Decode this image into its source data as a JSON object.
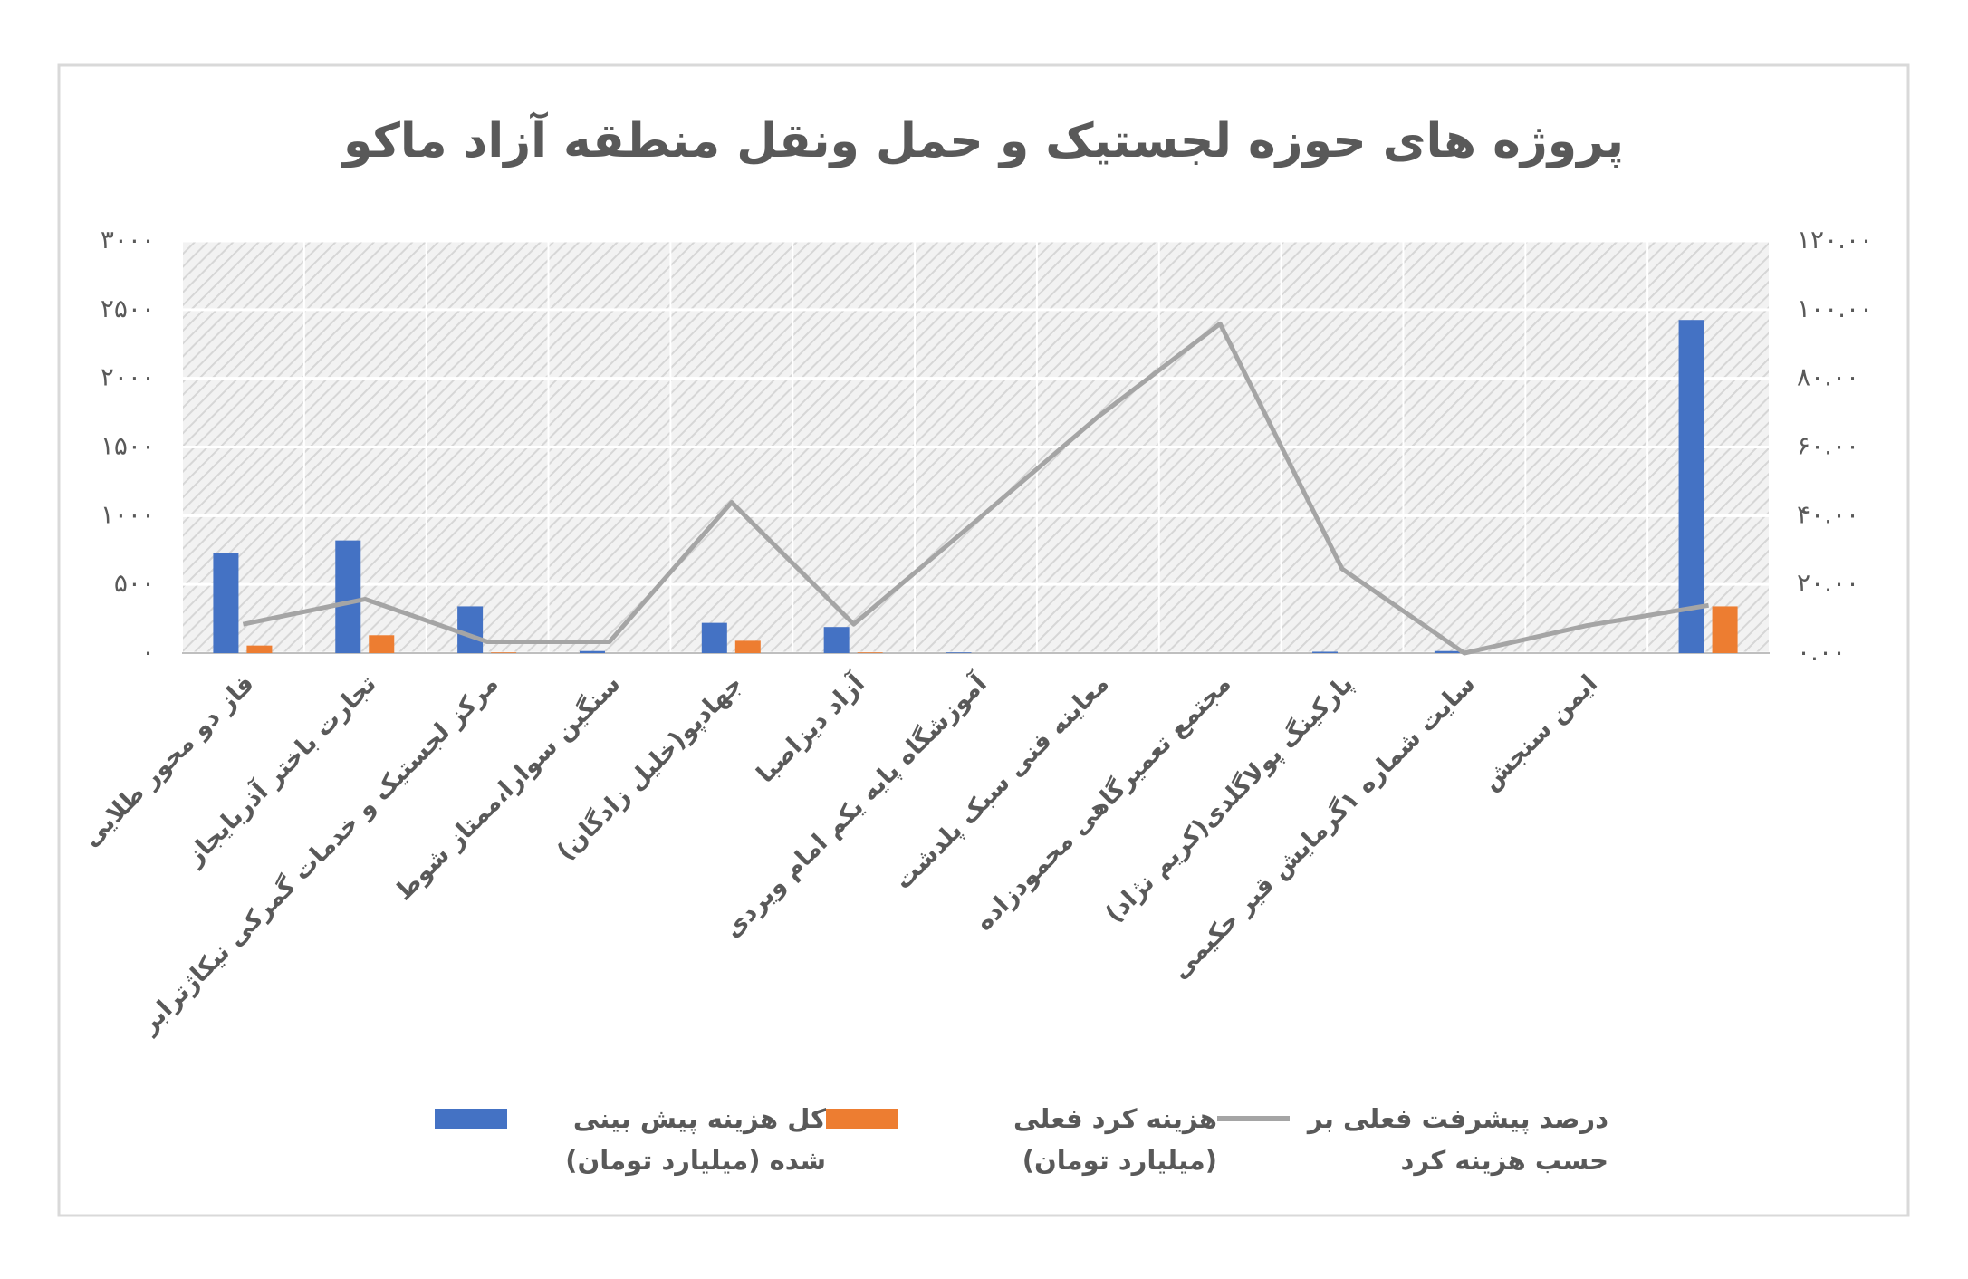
{
  "chart_data": {
    "type": "bar-line",
    "title": "پروژه های حوزه لجستیک و حمل ونقل منطقه آزاد ماکو",
    "categories": [
      "فاز دو محور طلایی",
      "تجارت باختر آذربایجاز",
      "مرکز لجستیک و خدمات گمرکی نیکاژترابر",
      "سنگین سوارا،ممتاز شوط",
      "جهادپو(خلیل زادگان)",
      "آزاد دیزاصبا",
      "آموزشگاه پایه یکم امام ویردی",
      "معاینه فنی سبک پلدشت",
      "مجتمع تعمیرگاهی محمودزاده",
      "پارکینگ پولاگلدی(کریم نژاد)",
      "سایت شماره ۱گرمایش قیر حکیمی",
      "ایمن سنجش",
      null
    ],
    "series": [
      {
        "name": "کل هزینه پیش بینی شده (میلیارد تومان)",
        "type": "bar",
        "color": "#4472c4",
        "values": [
          730,
          820,
          340,
          15,
          220,
          190,
          5,
          0,
          0,
          10,
          15,
          0,
          2425
        ]
      },
      {
        "name": "هزینه کرد فعلی (میلیارد تومان)",
        "type": "bar",
        "color": "#ed7d31",
        "values": [
          55,
          130,
          5,
          0,
          90,
          5,
          0,
          0,
          0,
          0,
          0,
          0,
          340
        ]
      },
      {
        "name": "درصد پیشرفت فعلی بر حسب هزینه کرد",
        "type": "line",
        "axis": "y2",
        "color": "#a5a5a5",
        "values": [
          8.4,
          15.7,
          3.3,
          3.3,
          43.9,
          8.4,
          38.4,
          68.8,
          95.9,
          24.5,
          0,
          8,
          13.9
        ]
      }
    ],
    "ylim": [
      0,
      3000
    ],
    "yticks": [
      {
        "value": 0,
        "label": "۰"
      },
      {
        "value": 500,
        "label": "۵۰۰"
      },
      {
        "value": 1000,
        "label": "۱۰۰۰"
      },
      {
        "value": 1500,
        "label": "۱۵۰۰"
      },
      {
        "value": 2000,
        "label": "۲۰۰۰"
      },
      {
        "value": 2500,
        "label": "۲۵۰۰"
      },
      {
        "value": 3000,
        "label": "۳۰۰۰"
      }
    ],
    "y2lim": [
      0,
      120
    ],
    "y2ticks": [
      {
        "value": 0,
        "label": "۰.۰۰"
      },
      {
        "value": 20,
        "label": "۲۰.۰۰"
      },
      {
        "value": 40,
        "label": "۴۰.۰۰"
      },
      {
        "value": 60,
        "label": "۶۰.۰۰"
      },
      {
        "value": 80,
        "label": "۸۰.۰۰"
      },
      {
        "value": 100,
        "label": "۱۰۰.۰۰"
      },
      {
        "value": 120,
        "label": "۱۲۰.۰۰"
      }
    ],
    "grid": true,
    "legend": "bottom"
  }
}
